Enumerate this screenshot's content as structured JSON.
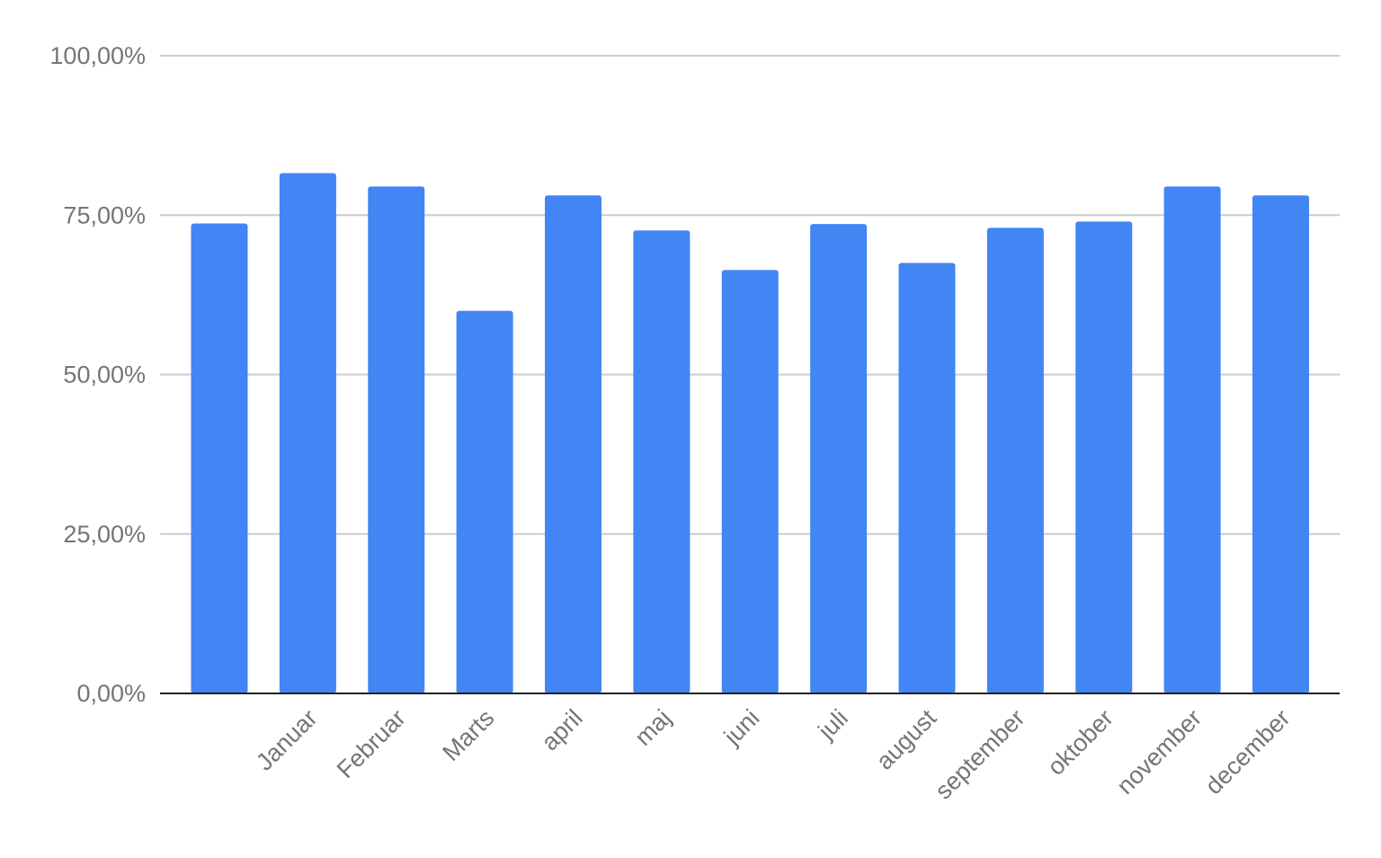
{
  "chart_data": {
    "type": "bar",
    "categories": [
      "",
      "Januar",
      "Februar",
      "Marts",
      "april",
      "maj",
      "juni",
      "juli",
      "august",
      "september",
      "oktober",
      "november",
      "december"
    ],
    "values": [
      73.7,
      81.6,
      79.5,
      60.0,
      78.1,
      72.6,
      66.4,
      73.6,
      67.5,
      73.0,
      74.0,
      79.5,
      78.1
    ],
    "title": "",
    "xlabel": "",
    "ylabel": "",
    "ylim": [
      0,
      100
    ],
    "y_ticks": [
      0,
      25,
      50,
      75,
      100
    ],
    "y_tick_labels": [
      "0,00%",
      "25,00%",
      "50,00%",
      "75,00%",
      "100,00%"
    ],
    "grid": true,
    "legend": "none",
    "bar_color": "#4285f4",
    "grid_color": "#cccccc",
    "axis_color": "#222222",
    "label_color": "#757575"
  }
}
